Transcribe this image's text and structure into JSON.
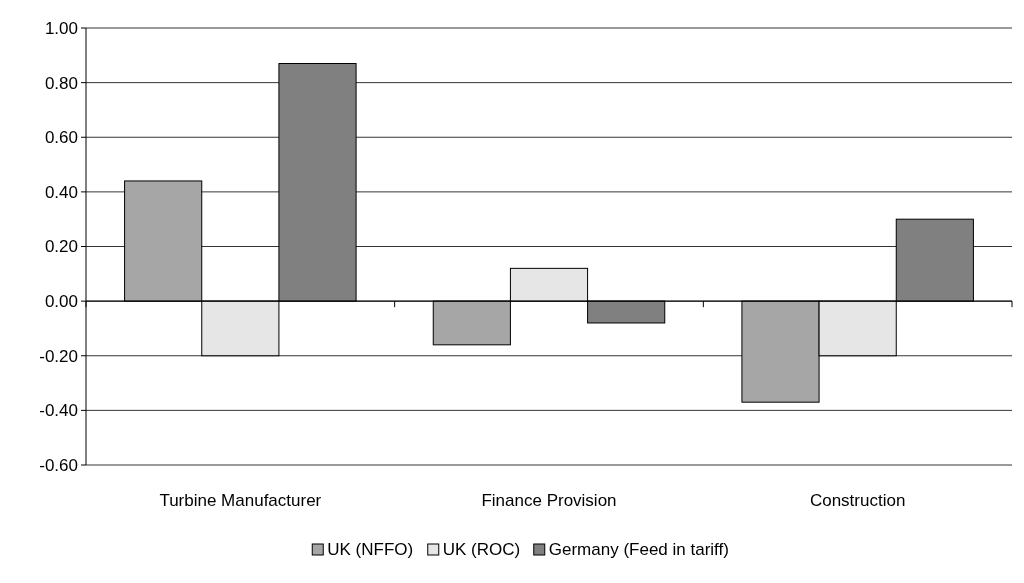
{
  "chart_data": {
    "type": "bar",
    "categories": [
      "Turbine Manufacturer",
      "Finance Provision",
      "Construction"
    ],
    "series": [
      {
        "name": "UK (NFFO)",
        "color": "#a6a6a6",
        "values": [
          0.44,
          -0.16,
          -0.37
        ]
      },
      {
        "name": "UK (ROC)",
        "color": "#e6e6e6",
        "values": [
          -0.2,
          0.12,
          -0.2
        ]
      },
      {
        "name": "Germany (Feed in tariff)",
        "color": "#808080",
        "values": [
          0.87,
          -0.08,
          0.3
        ]
      }
    ],
    "ylim": [
      -0.6,
      1.0
    ],
    "yticks": [
      {
        "value": -0.6,
        "label": "-0.60"
      },
      {
        "value": -0.4,
        "label": "-0.40"
      },
      {
        "value": -0.2,
        "label": "-0.20"
      },
      {
        "value": 0,
        "label": "0.00"
      },
      {
        "value": 0.2,
        "label": "0.20"
      },
      {
        "value": 0.4,
        "label": "0.40"
      },
      {
        "value": 0.6,
        "label": "0.60"
      },
      {
        "value": 0.8,
        "label": "0.80"
      },
      {
        "value": 1.0,
        "label": "1.00"
      }
    ],
    "grid": "y",
    "legend": "bottom"
  }
}
